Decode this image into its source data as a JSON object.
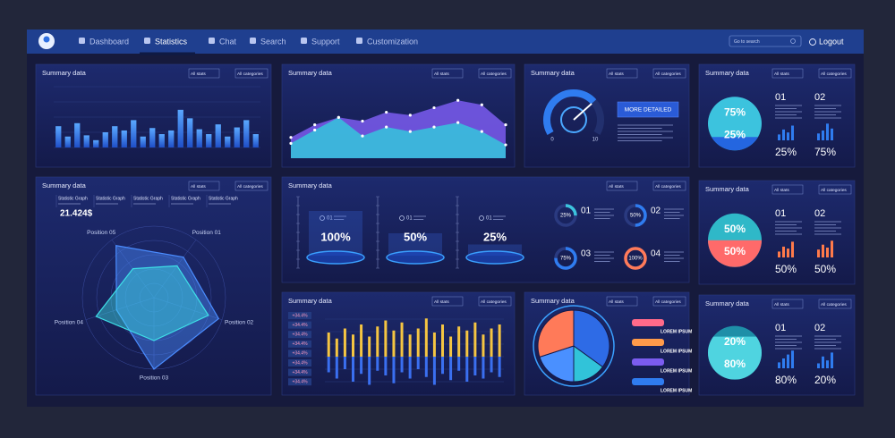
{
  "nav": {
    "items": [
      "Dashboard",
      "Statistics",
      "Chat",
      "Search",
      "Support",
      "Customization"
    ],
    "search": "Go to search",
    "logout": "Logout"
  },
  "panels": [
    {
      "type": "bars",
      "title": "Summary data",
      "filters": [
        "All stats",
        "All categories"
      ],
      "color": "#2f7cf0",
      "values": [
        35,
        18,
        40,
        20,
        12,
        25,
        35,
        28,
        45,
        18,
        32,
        22,
        28,
        62,
        48,
        30,
        22,
        38,
        18,
        33,
        45,
        22
      ]
    },
    {
      "type": "area",
      "title": "Summary data",
      "filters": [
        "All stats",
        "All categories"
      ],
      "series": [
        {
          "color": "#7b5cf0",
          "values": [
            28,
            45,
            55,
            50,
            62,
            58,
            68,
            78,
            72,
            45
          ]
        },
        {
          "color": "#35c6dc",
          "values": [
            20,
            38,
            55,
            30,
            42,
            36,
            42,
            48,
            36,
            18
          ]
        }
      ]
    },
    {
      "type": "gauge",
      "title": "Summary data",
      "filters": [
        "All stats",
        "All categories"
      ],
      "min": 0,
      "max": 10,
      "value": 7,
      "button": "MORE DETAILED",
      "color": "#2f7cf0"
    },
    {
      "type": "circle",
      "title": "Summary data",
      "filters": [
        "All stats",
        "All categories"
      ],
      "circle": {
        "values": [
          75,
          25
        ],
        "value_labels": [
          "75%",
          "25%"
        ],
        "colors": [
          "#3cc3de",
          "#2466e0"
        ]
      },
      "stats": {
        "ids": [
          "01",
          "02"
        ],
        "values": [
          25,
          75
        ],
        "value_labels": [
          "25%",
          "75%"
        ],
        "bars": [
          [
            30,
            55,
            40,
            75
          ],
          [
            35,
            50,
            85,
            60
          ]
        ],
        "color": "#2f7cf0"
      }
    },
    {
      "type": "radar",
      "title": "Summary data",
      "filters": [
        "All stats",
        "All categories"
      ],
      "cards": [
        "Statistic Graph",
        "Statistic Graph",
        "Statistic Graph",
        "Statistic Graph",
        "Statistic Graph"
      ],
      "total": "21.424$",
      "axes": [
        "Position 01",
        "Position 02",
        "Position 03",
        "Position 04",
        "Position 05"
      ],
      "series": [
        {
          "color": "#4a8cff",
          "values": [
            70,
            95,
            100,
            55,
            90
          ]
        },
        {
          "color": "#3ee0e8",
          "values": [
            55,
            80,
            60,
            85,
            50
          ]
        }
      ]
    },
    {
      "type": "progress",
      "title": "Summary data",
      "filters": [
        "All stats",
        "All categories"
      ],
      "levels": {
        "ids": [
          "01",
          "01",
          "01"
        ],
        "values": [
          100,
          50,
          25
        ],
        "value_labels": [
          "100%",
          "50%",
          "25%"
        ]
      },
      "donuts": {
        "ids": [
          "01",
          "02",
          "03",
          "04"
        ],
        "values": [
          25,
          50,
          75,
          100
        ],
        "value_labels": [
          "25%",
          "50%",
          "75%",
          "100%"
        ],
        "colors": [
          "#3cc3de",
          "#2f7cf0",
          "#2f7cf0",
          "#ff7a59"
        ]
      }
    },
    {
      "type": "circle",
      "title": "Summary data",
      "filters": [
        "All stats",
        "All categories"
      ],
      "circle": {
        "values": [
          50,
          50
        ],
        "value_labels": [
          "50%",
          "50%"
        ],
        "colors": [
          "#2fb8c8",
          "#ff6a6a"
        ]
      },
      "stats": {
        "ids": [
          "01",
          "02"
        ],
        "values": [
          50,
          50
        ],
        "value_labels": [
          "50%",
          "50%"
        ],
        "bars": [
          [
            30,
            55,
            45,
            80
          ],
          [
            40,
            65,
            50,
            85
          ]
        ],
        "color": "#ff7a4a"
      }
    },
    {
      "type": "updown",
      "title": "Summary data",
      "filters": [
        "All stats",
        "All categories"
      ],
      "labels": [
        "+34.4%",
        "+34.4%",
        "+34.4%",
        "+34.4%",
        "+34.4%",
        "+34.4%",
        "+34.4%",
        "+34.4%"
      ],
      "series": [
        {
          "color": "#f5c542",
          "values": [
            60,
            45,
            70,
            55,
            80,
            50,
            75,
            90,
            65,
            85,
            55,
            70,
            95,
            60,
            80,
            50,
            75,
            65,
            85,
            55,
            70,
            80
          ]
        },
        {
          "color": "#3a6ff0",
          "values": [
            50,
            70,
            40,
            80,
            55,
            90,
            45,
            60,
            85,
            50,
            70,
            40,
            65,
            90,
            55,
            75,
            45,
            80,
            60,
            70,
            50,
            65
          ]
        }
      ]
    },
    {
      "type": "pie",
      "title": "Summary data",
      "filters": [
        "All stats",
        "All categories"
      ],
      "values": [
        35,
        15,
        20,
        30
      ],
      "colors": [
        "#2e6be6",
        "#31c3d9",
        "#4a90ff",
        "#ff7a59"
      ],
      "legend": [
        "LOREM IPSUM",
        "LOREM IPSUM",
        "LOREM IPSUM",
        "LOREM IPSUM"
      ],
      "legend_colors": [
        "#ff6a8a",
        "#ff9a4a",
        "#7b5cf0",
        "#2f7cf0"
      ]
    },
    {
      "type": "circle",
      "title": "Summary data",
      "filters": [
        "All stats",
        "All categories"
      ],
      "circle": {
        "values": [
          20,
          80
        ],
        "value_labels": [
          "20%",
          "80%"
        ],
        "colors": [
          "#1e8fa8",
          "#4fd4e0"
        ]
      },
      "stats": {
        "ids": [
          "01",
          "02"
        ],
        "values": [
          80,
          20
        ],
        "value_labels": [
          "80%",
          "20%"
        ],
        "bars": [
          [
            30,
            50,
            70,
            90
          ],
          [
            25,
            60,
            40,
            80
          ]
        ],
        "color": "#2f7cf0"
      }
    }
  ]
}
